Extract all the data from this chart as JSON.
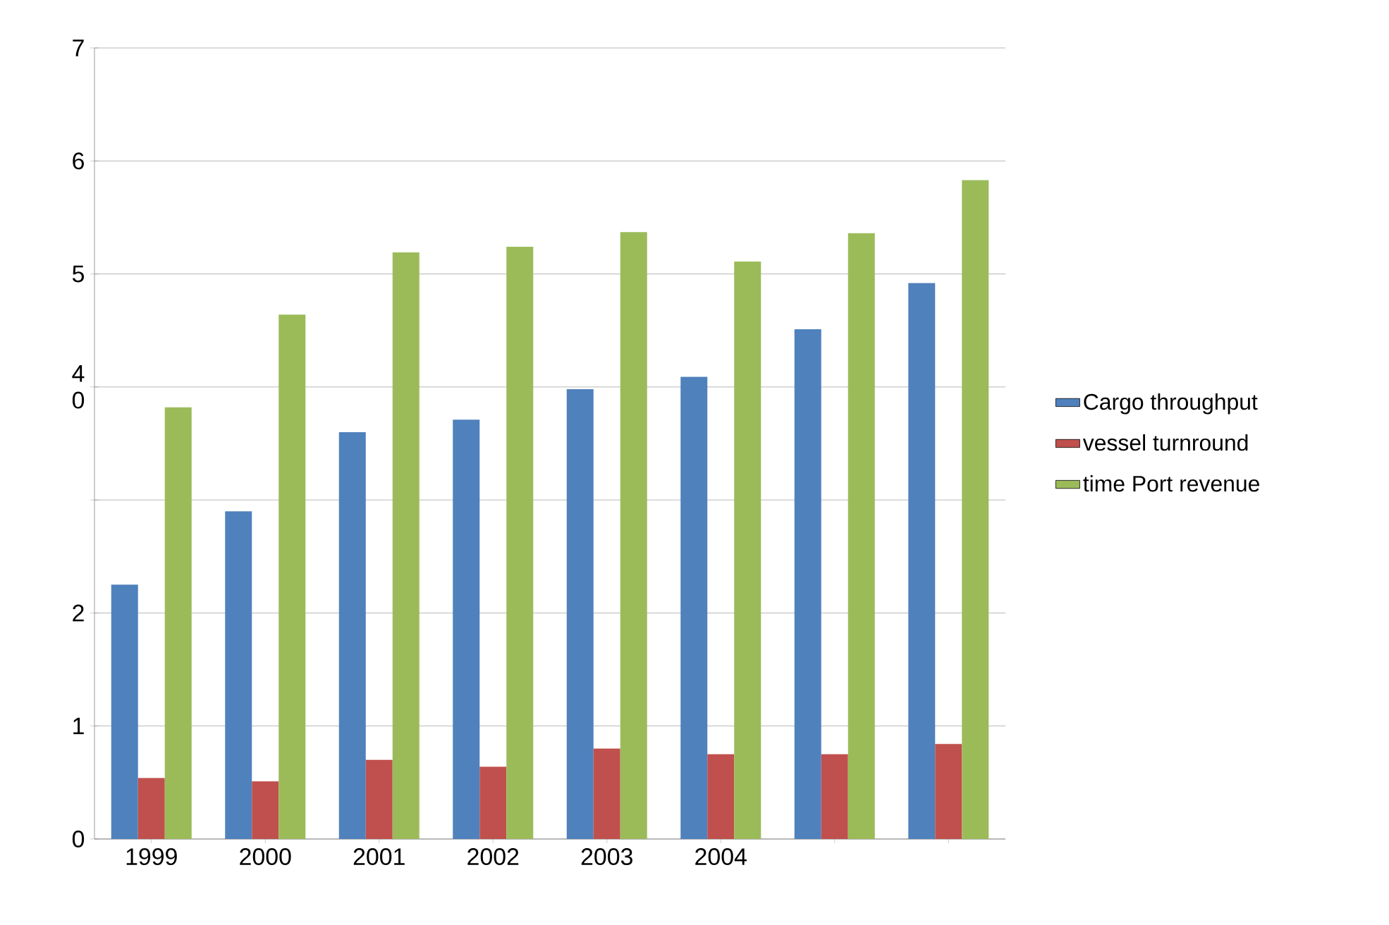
{
  "chart_data": {
    "type": "bar",
    "categories": [
      "1999",
      "2000",
      "2001",
      "2002",
      "2003",
      "2004",
      null,
      null
    ],
    "series": [
      {
        "name": "Cargo throughput",
        "color": "#4f81bd",
        "values": [
          2.25,
          2.9,
          3.6,
          3.71,
          3.98,
          4.09,
          4.51,
          4.92
        ]
      },
      {
        "name": "vessel turnround",
        "color": "#c0504d",
        "values": [
          0.54,
          0.51,
          0.7,
          0.64,
          0.8,
          0.75,
          0.75,
          0.84
        ]
      },
      {
        "name": "time Port revenue",
        "color": "#9bbb59",
        "values": [
          3.82,
          4.64,
          5.19,
          5.24,
          5.37,
          5.11,
          5.36,
          5.83
        ]
      }
    ],
    "ylim": [
      0,
      7
    ],
    "yticks": [
      0,
      1,
      2,
      {
        "value": 3,
        "label": null
      },
      {
        "value": 4,
        "label": "4 0"
      },
      5,
      6,
      7
    ],
    "grid": "y",
    "legend": "right"
  }
}
